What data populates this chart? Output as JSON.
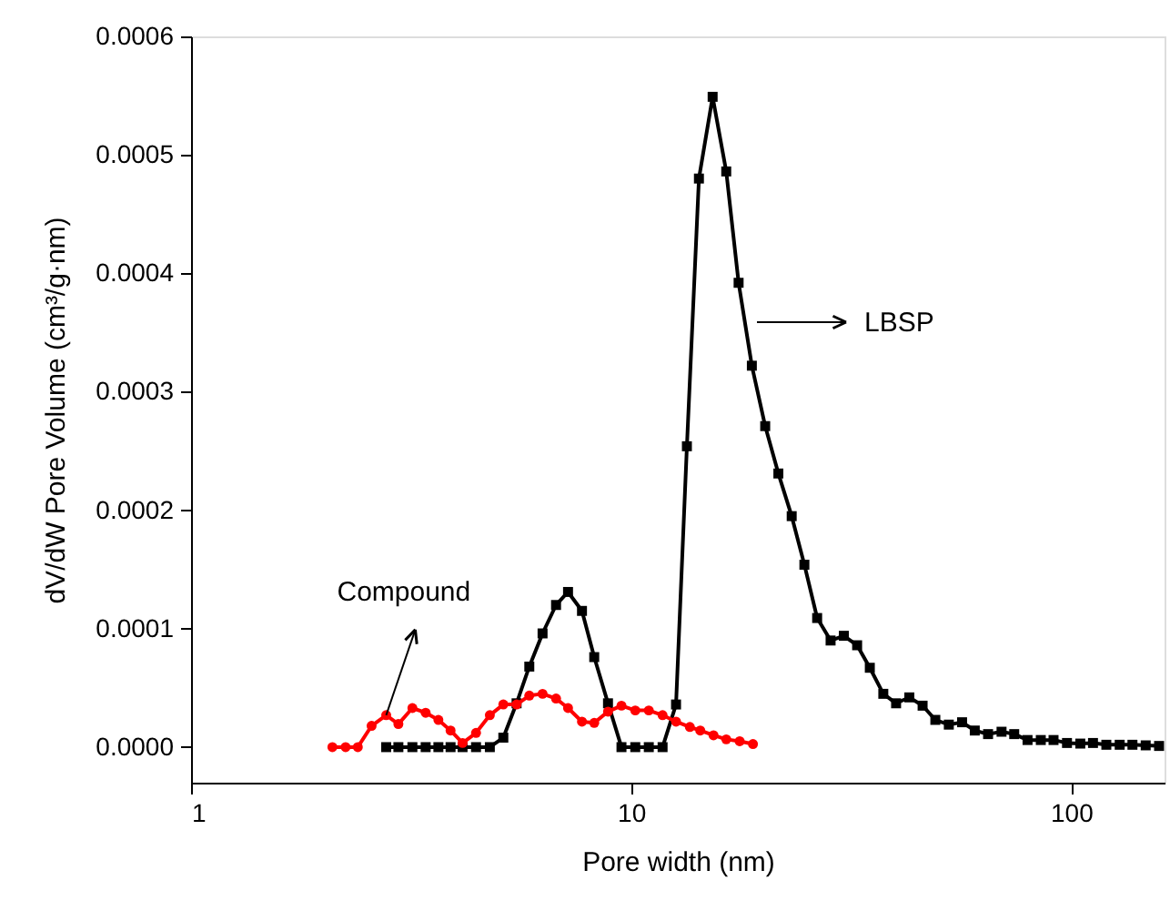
{
  "chart_data": {
    "type": "line",
    "xlabel": "Pore width (nm)",
    "ylabel": "dV/dW Pore Volume  (cm³/g·nm)",
    "log": "x",
    "xlim": [
      1,
      163
    ],
    "xticks": [
      1,
      10,
      100
    ],
    "ylim": [
      -3e-05,
      0.0006
    ],
    "yticks": [
      {
        "value": 0,
        "label": "0.0000"
      },
      {
        "value": 0.0001,
        "label": "0.0001"
      },
      {
        "value": 0.0002,
        "label": "0.0002"
      },
      {
        "value": 0.0003,
        "label": "0.0003"
      },
      {
        "value": 0.0004,
        "label": "0.0004"
      },
      {
        "value": 0.0005,
        "label": "0.0005"
      },
      {
        "value": 0.0006,
        "label": "0.0006"
      }
    ],
    "grid": false,
    "line_style": "solid",
    "annotations": [
      {
        "text": "Compound",
        "x": 2.776,
        "y": 2.7e-05
      },
      "LBSP"
    ],
    "series": [
      {
        "color": "#ff0000",
        "marker": "circle",
        "x": [
          2.095,
          2.245,
          2.393,
          2.572,
          2.776,
          2.959,
          3.184,
          3.413,
          3.648,
          3.888,
          4.14,
          4.442,
          4.775,
          5.124,
          5.492,
          5.87,
          6.292,
          6.752,
          7.189,
          7.733,
          8.245,
          8.861,
          9.508,
          10.22,
          10.97,
          11.79,
          12.65,
          13.6,
          14.36,
          15.39,
          16.45,
          17.65,
          18.92
        ],
        "values": [
          0.0,
          0.0,
          0.0,
          1.8e-05,
          2.7e-05,
          1.95e-05,
          3.3e-05,
          2.9e-05,
          2.3e-05,
          1.4e-05,
          3.5e-06,
          1.2e-05,
          2.7e-05,
          3.6e-05,
          3.6e-05,
          4.35e-05,
          4.5e-05,
          4.1e-05,
          3.3e-05,
          2.15e-05,
          2.05e-05,
          3e-05,
          3.5e-05,
          3.1e-05,
          3.1e-05,
          2.7e-05,
          2.15e-05,
          1.7e-05,
          1.4e-05,
          1e-05,
          6.6e-06,
          5e-06,
          2.6e-06
        ]
      },
      {
        "color": "#000000",
        "marker": "square",
        "x": [
          2.776,
          2.959,
          3.184,
          3.413,
          3.648,
          3.888,
          4.14,
          4.442,
          4.775,
          5.124,
          5.492,
          5.87,
          6.292,
          6.752,
          7.189,
          7.733,
          8.245,
          8.861,
          9.508,
          10.22,
          10.97,
          11.79,
          12.65,
          13.39,
          14.26,
          15.32,
          16.45,
          17.55,
          18.81,
          20.17,
          21.61,
          23.17,
          24.76,
          26.47,
          28.4,
          30.44,
          32.63,
          34.87,
          37.42,
          40.01,
          42.88,
          45.96,
          49.13,
          52.72,
          56.51,
          60.39,
          64.74,
          69.47,
          74.23,
          79.59,
          85.31,
          91.19,
          97.84,
          104.9,
          112.1,
          120.2,
          128.9,
          137.8,
          147.7,
          158.4
        ],
        "values": [
          0.0,
          0.0,
          0.0,
          0.0,
          0.0,
          0.0,
          0.0,
          0.0,
          0.0,
          8e-06,
          3.7e-05,
          6.8e-05,
          9.6e-05,
          0.00012,
          0.000131,
          0.000115,
          7.6e-05,
          3.7e-05,
          0.0,
          0.0,
          0.0,
          0.0,
          3.6e-05,
          0.000254,
          0.00048,
          0.000549,
          0.000486,
          0.000392,
          0.000322,
          0.000271,
          0.000231,
          0.000195,
          0.000154,
          0.000109,
          9e-05,
          9.4e-05,
          8.6e-05,
          6.7e-05,
          4.5e-05,
          3.7e-05,
          4.2e-05,
          3.5e-05,
          2.3e-05,
          1.9e-05,
          2.1e-05,
          1.4e-05,
          1.1e-05,
          1.3e-05,
          1.1e-05,
          6e-06,
          6e-06,
          6e-06,
          3.5e-06,
          3e-06,
          3.5e-06,
          2e-06,
          2e-06,
          2e-06,
          1.5e-06,
          1e-06
        ]
      }
    ]
  }
}
